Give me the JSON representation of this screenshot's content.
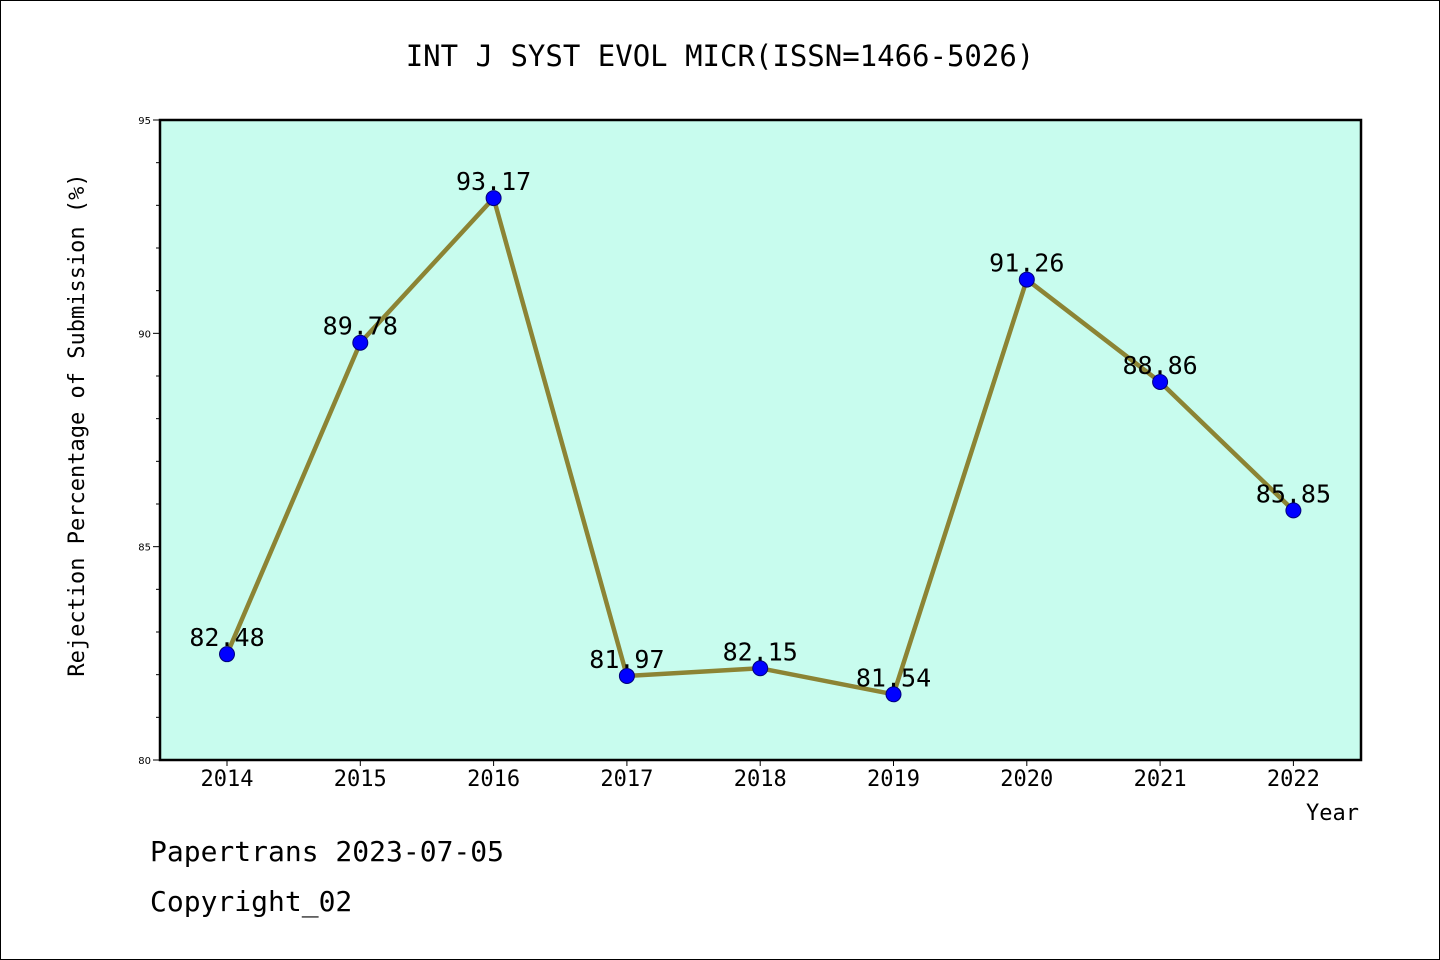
{
  "chart_data": {
    "type": "line",
    "title": "INT J SYST EVOL MICR(ISSN=1466-5026)",
    "xlabel": "Year",
    "ylabel": "Rejection Percentage of Submission (%)",
    "categories": [
      "2014",
      "2015",
      "2016",
      "2017",
      "2018",
      "2019",
      "2020",
      "2021",
      "2022"
    ],
    "values": [
      82.48,
      89.78,
      93.17,
      81.97,
      82.15,
      81.54,
      91.26,
      88.86,
      85.85
    ],
    "value_labels": [
      "82.48",
      "89.78",
      "93.17",
      "81.97",
      "82.15",
      "81.54",
      "91.26",
      "88.86",
      "85.85"
    ],
    "ylim": [
      80,
      95
    ],
    "y_ticks": [
      80,
      85,
      90,
      95
    ],
    "y_tick_labels": [
      "80",
      "85",
      "90",
      "95"
    ],
    "y_minor_step": 1,
    "grid": false,
    "legend": "none",
    "colors": {
      "plot_background": "#c8fcee",
      "line": "#8c8434",
      "marker": "#0000ff",
      "marker_edge": "#00007a",
      "frame": "#000000"
    }
  },
  "footer": {
    "line1": "Papertrans 2023-07-05",
    "line2": "Copyright_02"
  }
}
